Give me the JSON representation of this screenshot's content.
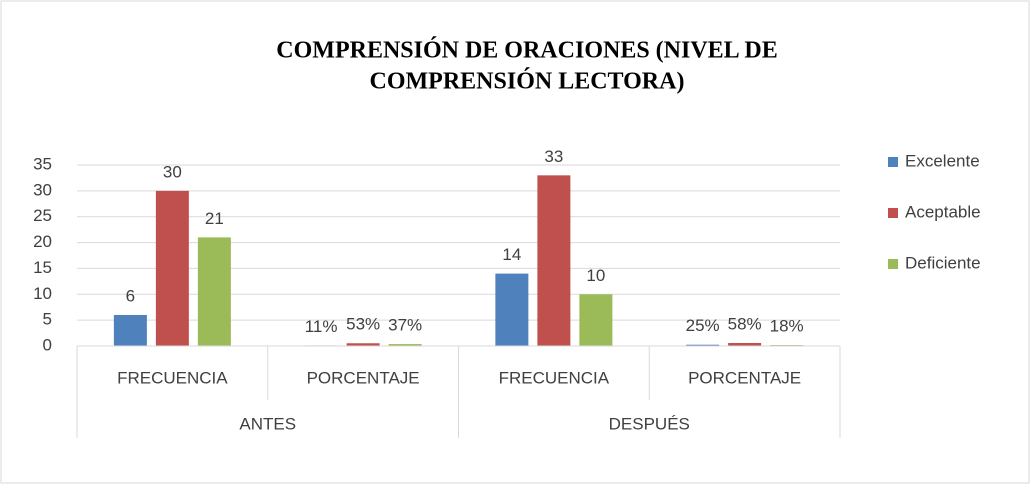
{
  "chart_data": {
    "type": "bar",
    "title": [
      "COMPRENSIÓN  DE ORACIONES  (NIVEL DE",
      "COMPRENSIÓN LECTORA)"
    ],
    "categories": [
      "FRECUENCIA",
      "PORCENTAJE",
      "FRECUENCIA",
      "PORCENTAJE"
    ],
    "category_groups": [
      "ANTES",
      "DESPUÉS"
    ],
    "series": [
      {
        "name": "Excelente",
        "color": "#4f81bd",
        "values": [
          6,
          0.11,
          14,
          0.25
        ],
        "value_labels": [
          "6",
          "11%",
          "14",
          "25%"
        ]
      },
      {
        "name": "Aceptable",
        "color": "#c0504d",
        "values": [
          30,
          0.53,
          33,
          0.58
        ],
        "value_labels": [
          "30",
          "53%",
          "33",
          "58%"
        ]
      },
      {
        "name": "Deficiente",
        "color": "#9bbb59",
        "values": [
          21,
          0.37,
          10,
          0.18
        ],
        "value_labels": [
          "21",
          "37%",
          "10",
          "18%"
        ]
      }
    ],
    "ylim": [
      0,
      35
    ],
    "yticks": [
      0,
      5,
      10,
      15,
      20,
      25,
      30,
      35
    ],
    "grid": true,
    "legend": "right"
  }
}
